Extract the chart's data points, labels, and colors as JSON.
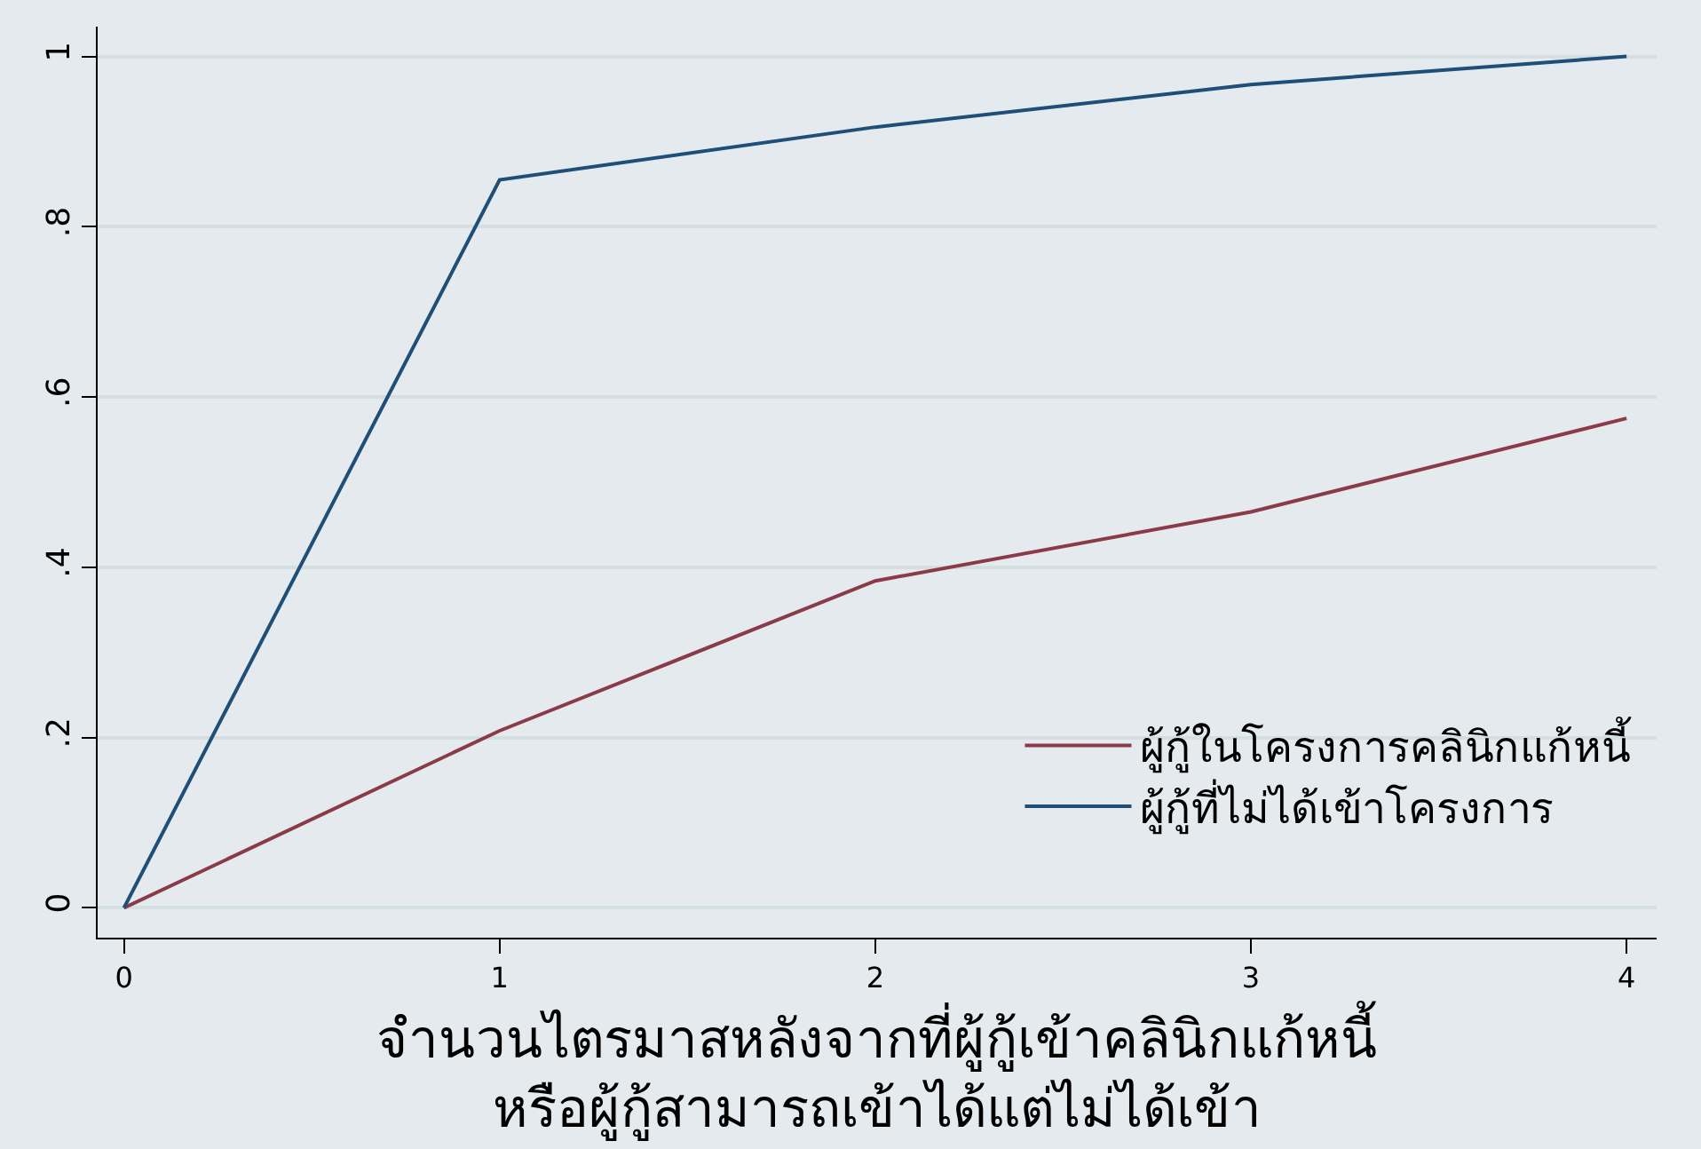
{
  "chart_data": {
    "type": "line",
    "xlabel": "จำนวนไตรมาสหลังจากที่ผู้กู้เข้าคลินิกแก้หนี้\nหรือผู้กู้สามารถเข้าได้แต่ไม่ได้เข้า",
    "x": [
      0,
      1,
      2,
      3,
      4
    ],
    "series": [
      {
        "name": "ผู้กู้ในโครงการคลินิกแก้หนี้",
        "color": "#8b3a47",
        "values": [
          0,
          0.208,
          0.384,
          0.465,
          0.575
        ]
      },
      {
        "name": "ผู้กู้ที่ไม่ได้เข้าโครงการ",
        "color": "#1f4e79",
        "values": [
          0,
          0.855,
          0.917,
          0.967,
          1
        ]
      }
    ],
    "xlim": [
      -0.07,
      4.08
    ],
    "xticks": [
      0,
      1,
      2,
      3,
      4
    ],
    "ylim": [
      -0.035,
      1.035
    ],
    "yticks": [
      {
        "value": 0,
        "label": "0"
      },
      {
        "value": 0.2,
        "label": ".2"
      },
      {
        "value": 0.4,
        "label": ".4"
      },
      {
        "value": 0.6,
        "label": ".6"
      },
      {
        "value": 0.8,
        "label": ".8"
      },
      {
        "value": 1,
        "label": "1"
      }
    ],
    "grid": "y",
    "legend": "bottom right",
    "marker": "none",
    "line_style": "solid"
  }
}
